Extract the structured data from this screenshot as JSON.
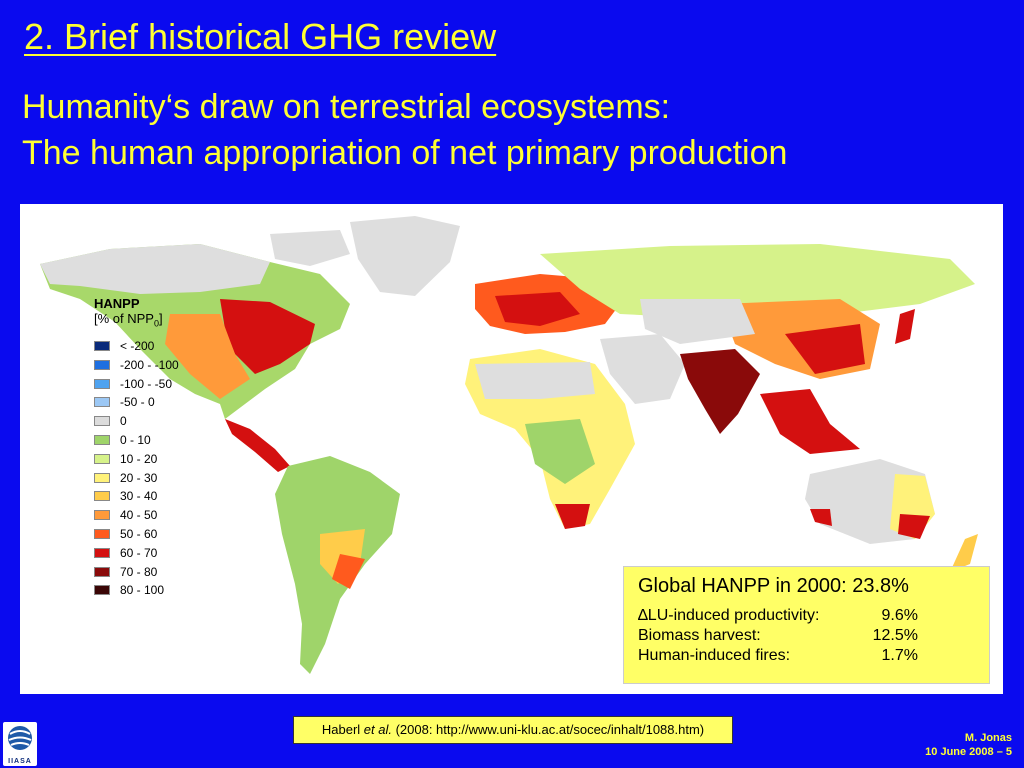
{
  "slide": {
    "title": "2. Brief historical GHG review",
    "subtitle_line1": "Humanity‘s draw on terrestrial ecosystems:",
    "subtitle_line2": "The human appropriation of net primary production"
  },
  "legend": {
    "title": "HANPP",
    "unit_prefix": "[% of NPP",
    "unit_sub": "0",
    "unit_suffix": "]",
    "items": [
      {
        "label": "< -200",
        "color": "#0a2a7a"
      },
      {
        "label": "-200 - -100",
        "color": "#1e6fe0"
      },
      {
        "label": "-100 - -50",
        "color": "#4fa3f0"
      },
      {
        "label": "-50 - 0",
        "color": "#9cc8f5"
      },
      {
        "label": "0",
        "color": "#dcdcdc"
      },
      {
        "label": "0 - 10",
        "color": "#9fd46a"
      },
      {
        "label": "10 - 20",
        "color": "#d6f28a"
      },
      {
        "label": "20 - 30",
        "color": "#fff27a"
      },
      {
        "label": "30 - 40",
        "color": "#ffcc4a"
      },
      {
        "label": "40 - 50",
        "color": "#ff9a3a"
      },
      {
        "label": "50 - 60",
        "color": "#ff5a1e"
      },
      {
        "label": "60 - 70",
        "color": "#d41010"
      },
      {
        "label": "70 - 80",
        "color": "#8a0a0a"
      },
      {
        "label": "80 - 100",
        "color": "#3a0505"
      }
    ]
  },
  "stats": {
    "header": "Global HANPP in 2000: 23.8%",
    "rows": [
      {
        "label": "∆LU-induced productivity:",
        "value": "9.6%"
      },
      {
        "label": "Biomass harvest:",
        "value": "12.5%"
      },
      {
        "label": "Human-induced fires:",
        "value": "1.7%"
      }
    ]
  },
  "citation": {
    "author": "Haberl ",
    "etal": "et al.",
    "rest": " (2008: http://www.uni-klu.ac.at/socec/inhalt/1088.htm)"
  },
  "logo": {
    "text": "IIASA"
  },
  "footer": {
    "author": "M. Jonas",
    "date_page": "10 June 2008 – 5"
  },
  "colors": {
    "background": "#0a0aef",
    "title": "#ffff33",
    "box": "#ffff66"
  }
}
